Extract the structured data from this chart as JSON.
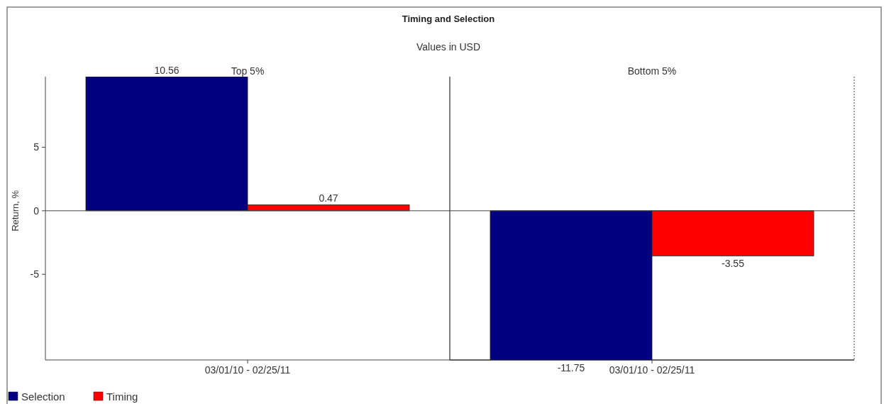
{
  "chart_data": {
    "type": "bar",
    "title": "Timing and Selection",
    "subtitle": "Values in USD",
    "ylabel": "Return, %",
    "annotations": [
      "Top 5%",
      "Bottom 5%"
    ],
    "categories": [
      "03/01/10 - 02/25/11",
      "03/01/10 - 02/25/11"
    ],
    "series": [
      {
        "name": "Selection",
        "color": "#000080",
        "values": [
          10.56,
          -11.75
        ]
      },
      {
        "name": "Timing",
        "color": "#ff0000",
        "values": [
          0.47,
          -3.55
        ]
      }
    ],
    "ylim": [
      -11.75,
      10.56
    ],
    "yticks": [
      -5,
      0,
      5
    ],
    "data_labels": true,
    "legend": "bottom left"
  }
}
